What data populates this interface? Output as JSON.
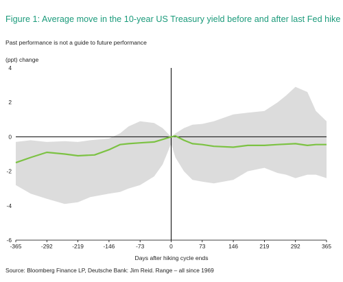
{
  "title": "Figure 1: Average move in the 10-year US Treasury yield before and after last Fed hike",
  "subtitle": "Past performance is not a guide to future performance",
  "source": "Source: Bloomberg Finance LP, Deutsche Bank: Jim Reid. Range – all since 1969",
  "colors": {
    "title": "#1a9a7a",
    "line": "#7cc243",
    "band": "#dcdcdc",
    "axis": "#000000"
  },
  "chart_data": {
    "type": "line",
    "ylabel": "(ppt) change",
    "xlabel": "Days after hiking cycle ends",
    "xlim": [
      -365,
      365
    ],
    "ylim": [
      -6,
      4
    ],
    "x_ticks": [
      -365,
      -292,
      -219,
      -146,
      -73,
      0,
      73,
      146,
      219,
      292,
      365
    ],
    "y_ticks": [
      4,
      2,
      0,
      -2,
      -4,
      -6
    ],
    "grid": false,
    "series": [
      {
        "kind": "line",
        "x": [
          -365,
          -330,
          -292,
          -250,
          -219,
          -180,
          -146,
          -120,
          -100,
          -73,
          -40,
          -20,
          0,
          10,
          30,
          50,
          73,
          100,
          146,
          180,
          219,
          250,
          292,
          320,
          340,
          365
        ],
        "y": [
          -1.5,
          -1.2,
          -0.9,
          -1.0,
          -1.1,
          -1.05,
          -0.75,
          -0.45,
          -0.4,
          -0.35,
          -0.3,
          -0.15,
          0.0,
          0.05,
          -0.2,
          -0.4,
          -0.45,
          -0.55,
          -0.6,
          -0.5,
          -0.5,
          -0.45,
          -0.4,
          -0.5,
          -0.45,
          -0.45
        ]
      },
      {
        "kind": "range",
        "x": [
          -365,
          -330,
          -292,
          -250,
          -219,
          -190,
          -146,
          -120,
          -100,
          -73,
          -40,
          -20,
          0,
          10,
          30,
          50,
          73,
          100,
          146,
          180,
          219,
          250,
          270,
          292,
          320,
          340,
          365
        ],
        "upper": [
          -0.3,
          -0.2,
          -0.3,
          -0.25,
          -0.3,
          -0.2,
          -0.1,
          0.2,
          0.6,
          0.9,
          0.8,
          0.5,
          0.0,
          0.2,
          0.5,
          0.7,
          0.75,
          0.9,
          1.3,
          1.4,
          1.5,
          2.0,
          2.4,
          2.9,
          2.6,
          1.5,
          0.9
        ],
        "lower": [
          -2.8,
          -3.3,
          -3.6,
          -3.9,
          -3.8,
          -3.5,
          -3.3,
          -3.2,
          -3.0,
          -2.8,
          -2.3,
          -1.6,
          -0.4,
          -1.2,
          -2.0,
          -2.5,
          -2.6,
          -2.7,
          -2.5,
          -2.0,
          -1.8,
          -2.1,
          -2.2,
          -2.4,
          -2.2,
          -2.2,
          -2.4
        ]
      }
    ]
  }
}
